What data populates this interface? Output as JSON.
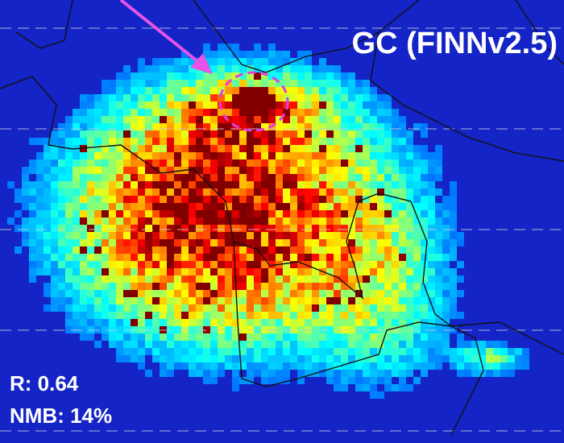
{
  "title": "GC (FINNv2.5)",
  "stats": [
    "R: 0.64",
    "NMB: 14%"
  ]
}
